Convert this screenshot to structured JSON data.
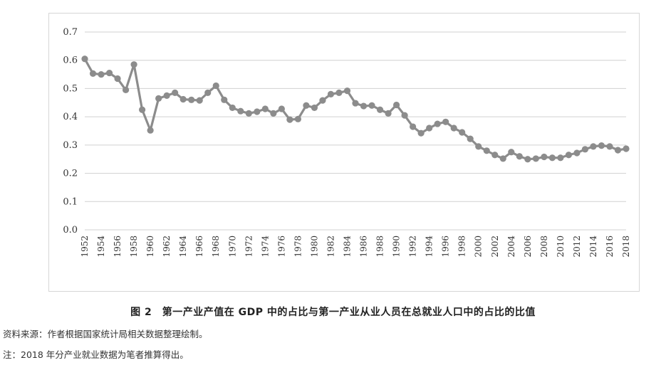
{
  "chart_data": {
    "type": "line",
    "x_start": 1952,
    "x_end": 2018,
    "xticks": [
      "1952",
      "1954",
      "1956",
      "1958",
      "1960",
      "1962",
      "1964",
      "1966",
      "1968",
      "1970",
      "1972",
      "1974",
      "1976",
      "1978",
      "1980",
      "1982",
      "1984",
      "1986",
      "1988",
      "1990",
      "1992",
      "1994",
      "1996",
      "1998",
      "2000",
      "2002",
      "2004",
      "2006",
      "2008",
      "2010",
      "2012",
      "2014",
      "2016",
      "2018"
    ],
    "yticks": [
      "0.0",
      "0.1",
      "0.2",
      "0.3",
      "0.4",
      "0.5",
      "0.6",
      "0.7"
    ],
    "ylim": [
      0,
      0.7
    ],
    "grid": true,
    "series": [
      {
        "values": [
          0.605,
          0.553,
          0.55,
          0.555,
          0.535,
          0.495,
          0.585,
          0.425,
          0.352,
          0.465,
          0.475,
          0.485,
          0.462,
          0.46,
          0.458,
          0.485,
          0.51,
          0.46,
          0.432,
          0.42,
          0.412,
          0.418,
          0.428,
          0.412,
          0.428,
          0.39,
          0.392,
          0.44,
          0.432,
          0.458,
          0.48,
          0.485,
          0.492,
          0.448,
          0.438,
          0.44,
          0.425,
          0.412,
          0.442,
          0.405,
          0.365,
          0.342,
          0.36,
          0.375,
          0.382,
          0.36,
          0.345,
          0.322,
          0.295,
          0.28,
          0.265,
          0.252,
          0.275,
          0.26,
          0.25,
          0.252,
          0.258,
          0.255,
          0.255,
          0.265,
          0.272,
          0.285,
          0.295,
          0.298,
          0.295,
          0.282,
          0.287
        ],
        "color": "#8c8c8c"
      }
    ]
  },
  "caption": "图 2　第一产业产值在 GDP 中的占比与第一产业从业人员在总就业人口中的占比的比值",
  "source_note": "资料来源：作者根据国家统计局相关数据整理绘制。",
  "footnote": "注：2018 年分产业就业数据为笔者推算得出。"
}
